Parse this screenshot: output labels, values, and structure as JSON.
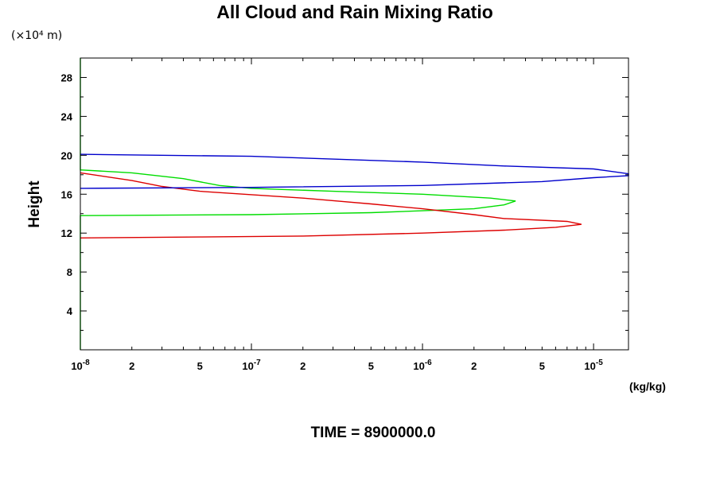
{
  "chart_data": {
    "type": "line",
    "title": "All Cloud and Rain Mixing Ratio",
    "y_unit_note": "(×10⁴ m)",
    "ylabel": "Height",
    "xlabel": "(kg/kg)",
    "time_label": "TIME = 8900000.0",
    "xscale": "log",
    "xlim": [
      1e-08,
      1.6e-05
    ],
    "ylim": [
      0,
      30
    ],
    "grid": false,
    "y_ticks": [
      {
        "v": 4,
        "label": "4"
      },
      {
        "v": 8,
        "label": "8"
      },
      {
        "v": 12,
        "label": "12"
      },
      {
        "v": 16,
        "label": "16"
      },
      {
        "v": 20,
        "label": "20"
      },
      {
        "v": 24,
        "label": "24"
      },
      {
        "v": 28,
        "label": "28"
      }
    ],
    "x_ticks": [
      {
        "v": 1e-08,
        "base": "10",
        "exp": "-8"
      },
      {
        "v": 2e-08,
        "label": "2"
      },
      {
        "v": 5e-08,
        "label": "5"
      },
      {
        "v": 1e-07,
        "base": "10",
        "exp": "-7"
      },
      {
        "v": 2e-07,
        "label": "2"
      },
      {
        "v": 5e-07,
        "label": "5"
      },
      {
        "v": 1e-06,
        "base": "10",
        "exp": "-6"
      },
      {
        "v": 2e-06,
        "label": "2"
      },
      {
        "v": 5e-06,
        "label": "5"
      },
      {
        "v": 1e-05,
        "base": "10",
        "exp": "-5"
      }
    ],
    "series": [
      {
        "color": "#00dd00",
        "points": [
          [
            1e-08,
            0
          ],
          [
            1e-08,
            13.8
          ],
          [
            1e-07,
            13.9
          ],
          [
            5e-07,
            14.1
          ],
          [
            1e-06,
            14.3
          ],
          [
            2e-06,
            14.5
          ],
          [
            3e-06,
            14.9
          ],
          [
            3.5e-06,
            15.3
          ],
          [
            2.5e-06,
            15.6
          ],
          [
            1e-06,
            16.0
          ],
          [
            3e-07,
            16.3
          ],
          [
            1e-07,
            16.6
          ],
          [
            6.5e-08,
            16.9
          ],
          [
            4e-08,
            17.6
          ],
          [
            2e-08,
            18.2
          ],
          [
            1e-08,
            18.5
          ],
          [
            1e-08,
            30
          ]
        ]
      },
      {
        "color": "#dd0000",
        "points": [
          [
            1e-08,
            11.5
          ],
          [
            5e-08,
            11.6
          ],
          [
            2e-07,
            11.7
          ],
          [
            1e-06,
            12.0
          ],
          [
            3e-06,
            12.3
          ],
          [
            6e-06,
            12.6
          ],
          [
            8.5e-06,
            12.9
          ],
          [
            7e-06,
            13.2
          ],
          [
            3e-06,
            13.5
          ],
          [
            2e-06,
            13.9
          ],
          [
            1e-06,
            14.5
          ],
          [
            5e-07,
            15.0
          ],
          [
            2e-07,
            15.6
          ],
          [
            5e-08,
            16.3
          ],
          [
            3e-08,
            16.8
          ],
          [
            2e-08,
            17.4
          ],
          [
            1e-08,
            18.2
          ]
        ]
      },
      {
        "color": "#0000cc",
        "points": [
          [
            1e-08,
            16.6
          ],
          [
            1e-07,
            16.7
          ],
          [
            1e-06,
            16.9
          ],
          [
            5e-06,
            17.3
          ],
          [
            1e-05,
            17.7
          ],
          [
            1.6e-05,
            17.9
          ],
          [
            1.6e-05,
            18.1
          ],
          [
            1e-05,
            18.6
          ],
          [
            3e-06,
            18.9
          ],
          [
            1e-06,
            19.3
          ],
          [
            1e-07,
            19.9
          ],
          [
            1e-08,
            20.1
          ]
        ]
      }
    ]
  }
}
